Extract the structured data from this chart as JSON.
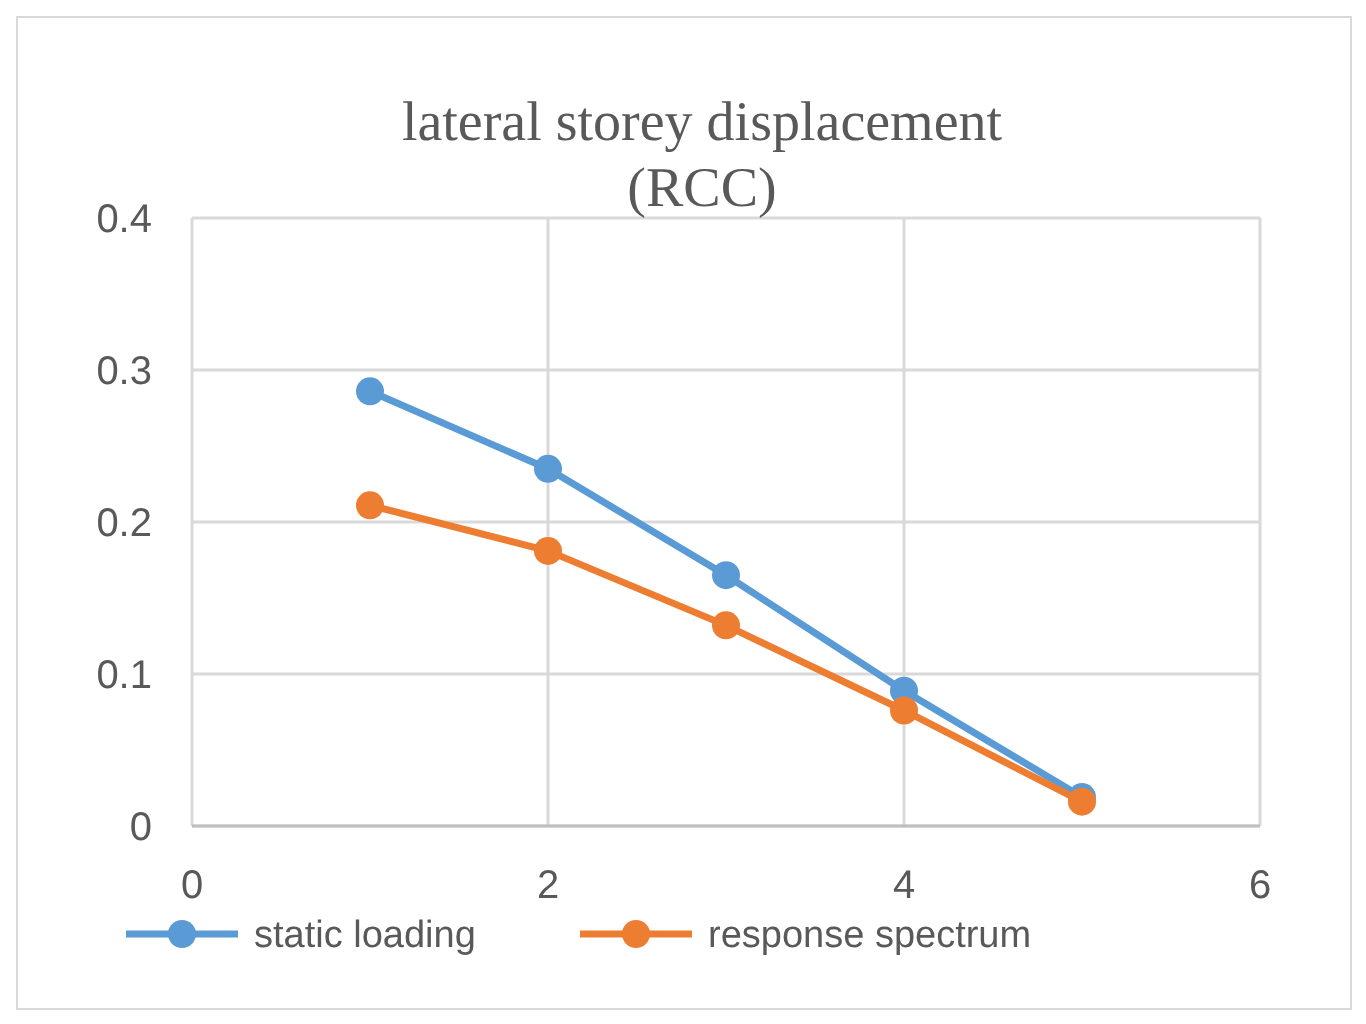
{
  "chart_data": {
    "type": "line",
    "title": "lateral storey displacement (RCC)",
    "x": [
      1,
      2,
      3,
      4,
      5
    ],
    "series": [
      {
        "name": "static loading",
        "color": "#5b9bd5",
        "values": [
          0.286,
          0.235,
          0.165,
          0.089,
          0.019
        ]
      },
      {
        "name": "response spectrum",
        "color": "#ed7d31",
        "values": [
          0.211,
          0.181,
          0.132,
          0.076,
          0.016
        ]
      }
    ],
    "xlim": [
      0,
      6
    ],
    "xticks": [
      0,
      2,
      4,
      6
    ],
    "ylim": [
      0,
      0.4
    ],
    "yticks": [
      0,
      0.1,
      0.2,
      0.3,
      0.4
    ],
    "grid": true,
    "legend": "bottom",
    "marker": "circle",
    "line_style": "solid"
  }
}
